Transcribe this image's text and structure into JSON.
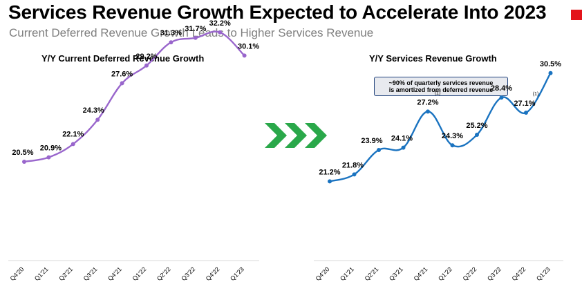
{
  "header": {
    "title": "Services Revenue Growth Expected to Accelerate Into 2023",
    "subtitle": "Current Deferred Revenue Growth Leads to Higher Services Revenue",
    "accent_color": "#e3141b"
  },
  "arrow": {
    "color": "#2aa84a",
    "icon": "triple-chevron-right-icon"
  },
  "callout": {
    "line1": "~90% of quarterly services revenue",
    "line2": "is amortized from deferred revenue"
  },
  "chart_data": [
    {
      "type": "line",
      "title": "Y/Y Current Deferred Revenue Growth",
      "categories": [
        "Q4'20",
        "Q1'21",
        "Q2'21",
        "Q3'21",
        "Q4'21",
        "Q1'22",
        "Q2'22",
        "Q3'22",
        "Q4'22",
        "Q1'23"
      ],
      "values": [
        20.5,
        20.9,
        22.1,
        24.3,
        27.6,
        29.2,
        31.3,
        31.7,
        32.2,
        30.1
      ],
      "labels": [
        "20.5%",
        "20.9%",
        "22.1%",
        "24.3%",
        "27.6%",
        "29.2%",
        "31.3%",
        "31.7%",
        "32.2%",
        "30.1%"
      ],
      "footnotes": [],
      "color": "#9966cc",
      "xlabel": "",
      "ylabel": "",
      "ylim": [
        14,
        34
      ],
      "grid": false
    },
    {
      "type": "line",
      "title": "Y/Y Services Revenue Growth",
      "categories": [
        "Q4'20",
        "Q1'21",
        "Q2'21",
        "Q3'21",
        "Q4'21",
        "Q1'22",
        "Q2'22",
        "Q3'22",
        "Q4'22",
        "Q1'23"
      ],
      "values": [
        21.2,
        21.8,
        23.9,
        24.1,
        27.2,
        24.3,
        25.2,
        28.4,
        27.1,
        30.5
      ],
      "labels": [
        "21.2%",
        "21.8%",
        "23.9%",
        "24.1%",
        "27.2%",
        "24.3%",
        "25.2%",
        "28.4%",
        "27.1%",
        "30.5%"
      ],
      "footnotes": [
        {
          "index": 4,
          "text": "(1)"
        },
        {
          "index": 8,
          "text": "(1)"
        }
      ],
      "color": "#1a73c0",
      "xlabel": "",
      "ylabel": "",
      "ylim": [
        16,
        35
      ],
      "grid": false
    }
  ]
}
